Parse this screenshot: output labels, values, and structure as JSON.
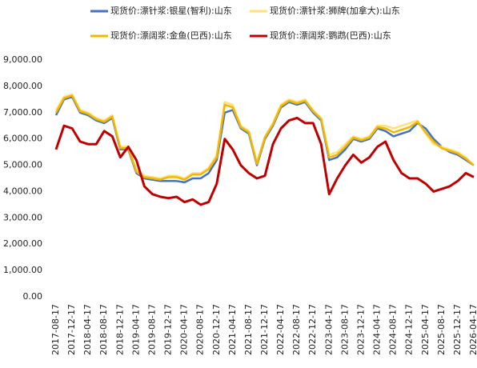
{
  "chart_data": {
    "type": "line",
    "categories": [
      "2017-08-17",
      null,
      "2017-12-17",
      null,
      "2018-04-17",
      null,
      "2018-08-17",
      null,
      "2018-12-17",
      null,
      "2019-04-17",
      null,
      "2019-08-17",
      null,
      "2019-12-17",
      null,
      "2020-04-17",
      null,
      "2020-08-17",
      null,
      "2020-12-17",
      null,
      "2021-04-17",
      null,
      "2021-08-17",
      null,
      "2021-12-17",
      null,
      "2022-04-17",
      null,
      "2022-08-17",
      null,
      "2022-12-17",
      null,
      "2023-04-17",
      null,
      "2023-08-17",
      null,
      "2023-12-17",
      null,
      "2024-04-17",
      null,
      "2024-08-17",
      null,
      "2024-12-17",
      null,
      "2025-04-17",
      null,
      "2025-08-17",
      null,
      "2025-12-17",
      null,
      "2026-04-17"
    ],
    "series": [
      {
        "name": "现货价:漂针浆:银星(智利):山东",
        "color": "#4472c4",
        "values": [
          6900,
          7500,
          7600,
          7000,
          6900,
          6700,
          6600,
          6800,
          5600,
          5600,
          4700,
          4500,
          4450,
          4400,
          4400,
          4400,
          4350,
          4500,
          4500,
          4700,
          5200,
          7000,
          7100,
          6400,
          6200,
          5000,
          6000,
          6500,
          7200,
          7400,
          7300,
          7400,
          7000,
          6700,
          5200,
          5300,
          5600,
          6000,
          5900,
          6000,
          6400,
          6300,
          6100,
          6200,
          6300,
          6600,
          6400,
          6000,
          5700,
          5500,
          5400,
          5200,
          5000
        ]
      },
      {
        "name": "现货价:漂针浆:狮牌(加拿大):山东",
        "color": "#ffe07a",
        "values": [
          7100,
          7600,
          7700,
          7100,
          7000,
          6800,
          6700,
          6900,
          5700,
          5700,
          4800,
          4600,
          4550,
          4500,
          4600,
          4600,
          4500,
          4700,
          4700,
          4900,
          5400,
          7400,
          7300,
          6500,
          6300,
          5100,
          6100,
          6600,
          7300,
          7500,
          7400,
          7500,
          7100,
          6800,
          5400,
          5500,
          5800,
          6100,
          6000,
          6100,
          6500,
          6500,
          6400,
          6500,
          6600,
          6700,
          6200,
          5800,
          5700,
          5600,
          5500,
          5300,
          5000
        ]
      },
      {
        "name": "现货价:漂阔浆:金鱼(巴西):山东",
        "color": "#f2b800",
        "values": [
          7000,
          7550,
          7650,
          7050,
          6950,
          6750,
          6650,
          6850,
          5650,
          5650,
          4750,
          4550,
          4500,
          4450,
          4550,
          4550,
          4450,
          4650,
          4650,
          4850,
          5300,
          7300,
          7200,
          6450,
          6250,
          5050,
          6050,
          6550,
          7250,
          7450,
          7350,
          7450,
          7050,
          6750,
          5300,
          5400,
          5700,
          6050,
          5950,
          6050,
          6450,
          6400,
          6250,
          6350,
          6450,
          6650,
          6250,
          5900,
          5650,
          5550,
          5450,
          5250,
          5000
        ]
      },
      {
        "name": "现货价:漂阔浆:鹦鹉(巴西):山东",
        "color": "#c00000",
        "values": [
          5600,
          6500,
          6400,
          5900,
          5800,
          5800,
          6300,
          6100,
          5300,
          5700,
          5200,
          4200,
          3900,
          3800,
          3750,
          3800,
          3600,
          3700,
          3500,
          3600,
          4300,
          6000,
          5600,
          5000,
          4700,
          4500,
          4600,
          5800,
          6400,
          6700,
          6800,
          6600,
          6600,
          5800,
          3900,
          4500,
          5000,
          5400,
          5100,
          5300,
          5700,
          5900,
          5200,
          4700,
          4500,
          4500,
          4300,
          4000,
          4100,
          4200,
          4400,
          4700,
          4550
        ]
      }
    ],
    "ylim": [
      0,
      9000
    ],
    "yticks": [
      {
        "value": 0,
        "label": "0.00"
      },
      {
        "value": 1000,
        "label": "1,000.00"
      },
      {
        "value": 2000,
        "label": "2,000.00"
      },
      {
        "value": 3000,
        "label": "3,000.00"
      },
      {
        "value": 4000,
        "label": "4,000.00"
      },
      {
        "value": 5000,
        "label": "5,000.00"
      },
      {
        "value": 6000,
        "label": "6,000.00"
      },
      {
        "value": 7000,
        "label": "7,000.00"
      },
      {
        "value": 8000,
        "label": "8,000.00"
      },
      {
        "value": 9000,
        "label": "9,000.00"
      }
    ],
    "grid": false
  }
}
